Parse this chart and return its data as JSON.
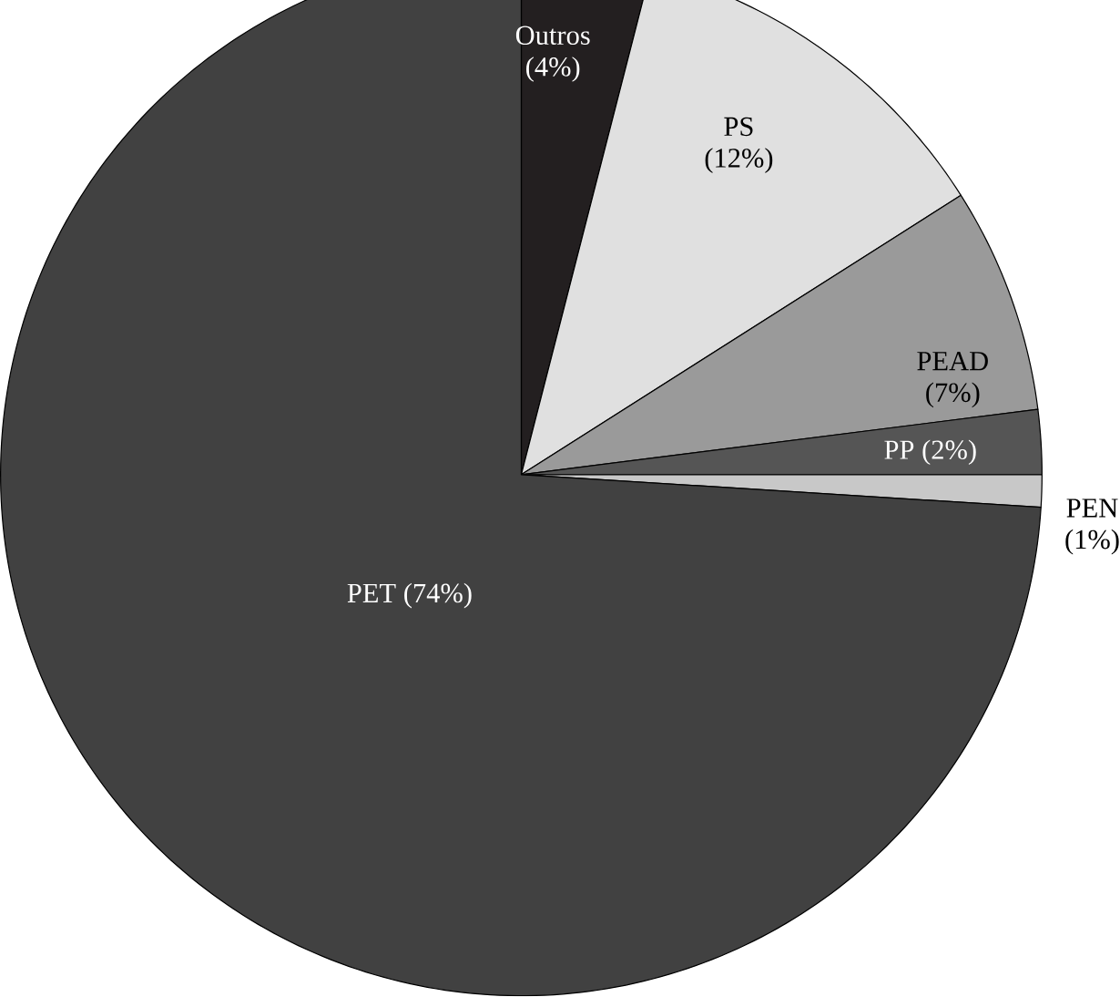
{
  "chart_data": {
    "type": "pie",
    "categories": [
      "Outros",
      "PS",
      "PEAD",
      "PP",
      "PEN",
      "PET"
    ],
    "values": [
      4,
      12,
      7,
      2,
      1,
      74
    ],
    "value_labels": [
      "(4%)",
      "(12%)",
      "(7%)",
      "(2%)",
      "(1%)",
      "(74%)"
    ],
    "colors": [
      "#231f20",
      "#e0e0e0",
      "#9a9a9a",
      "#555555",
      "#c8c8c8",
      "#414141"
    ]
  }
}
